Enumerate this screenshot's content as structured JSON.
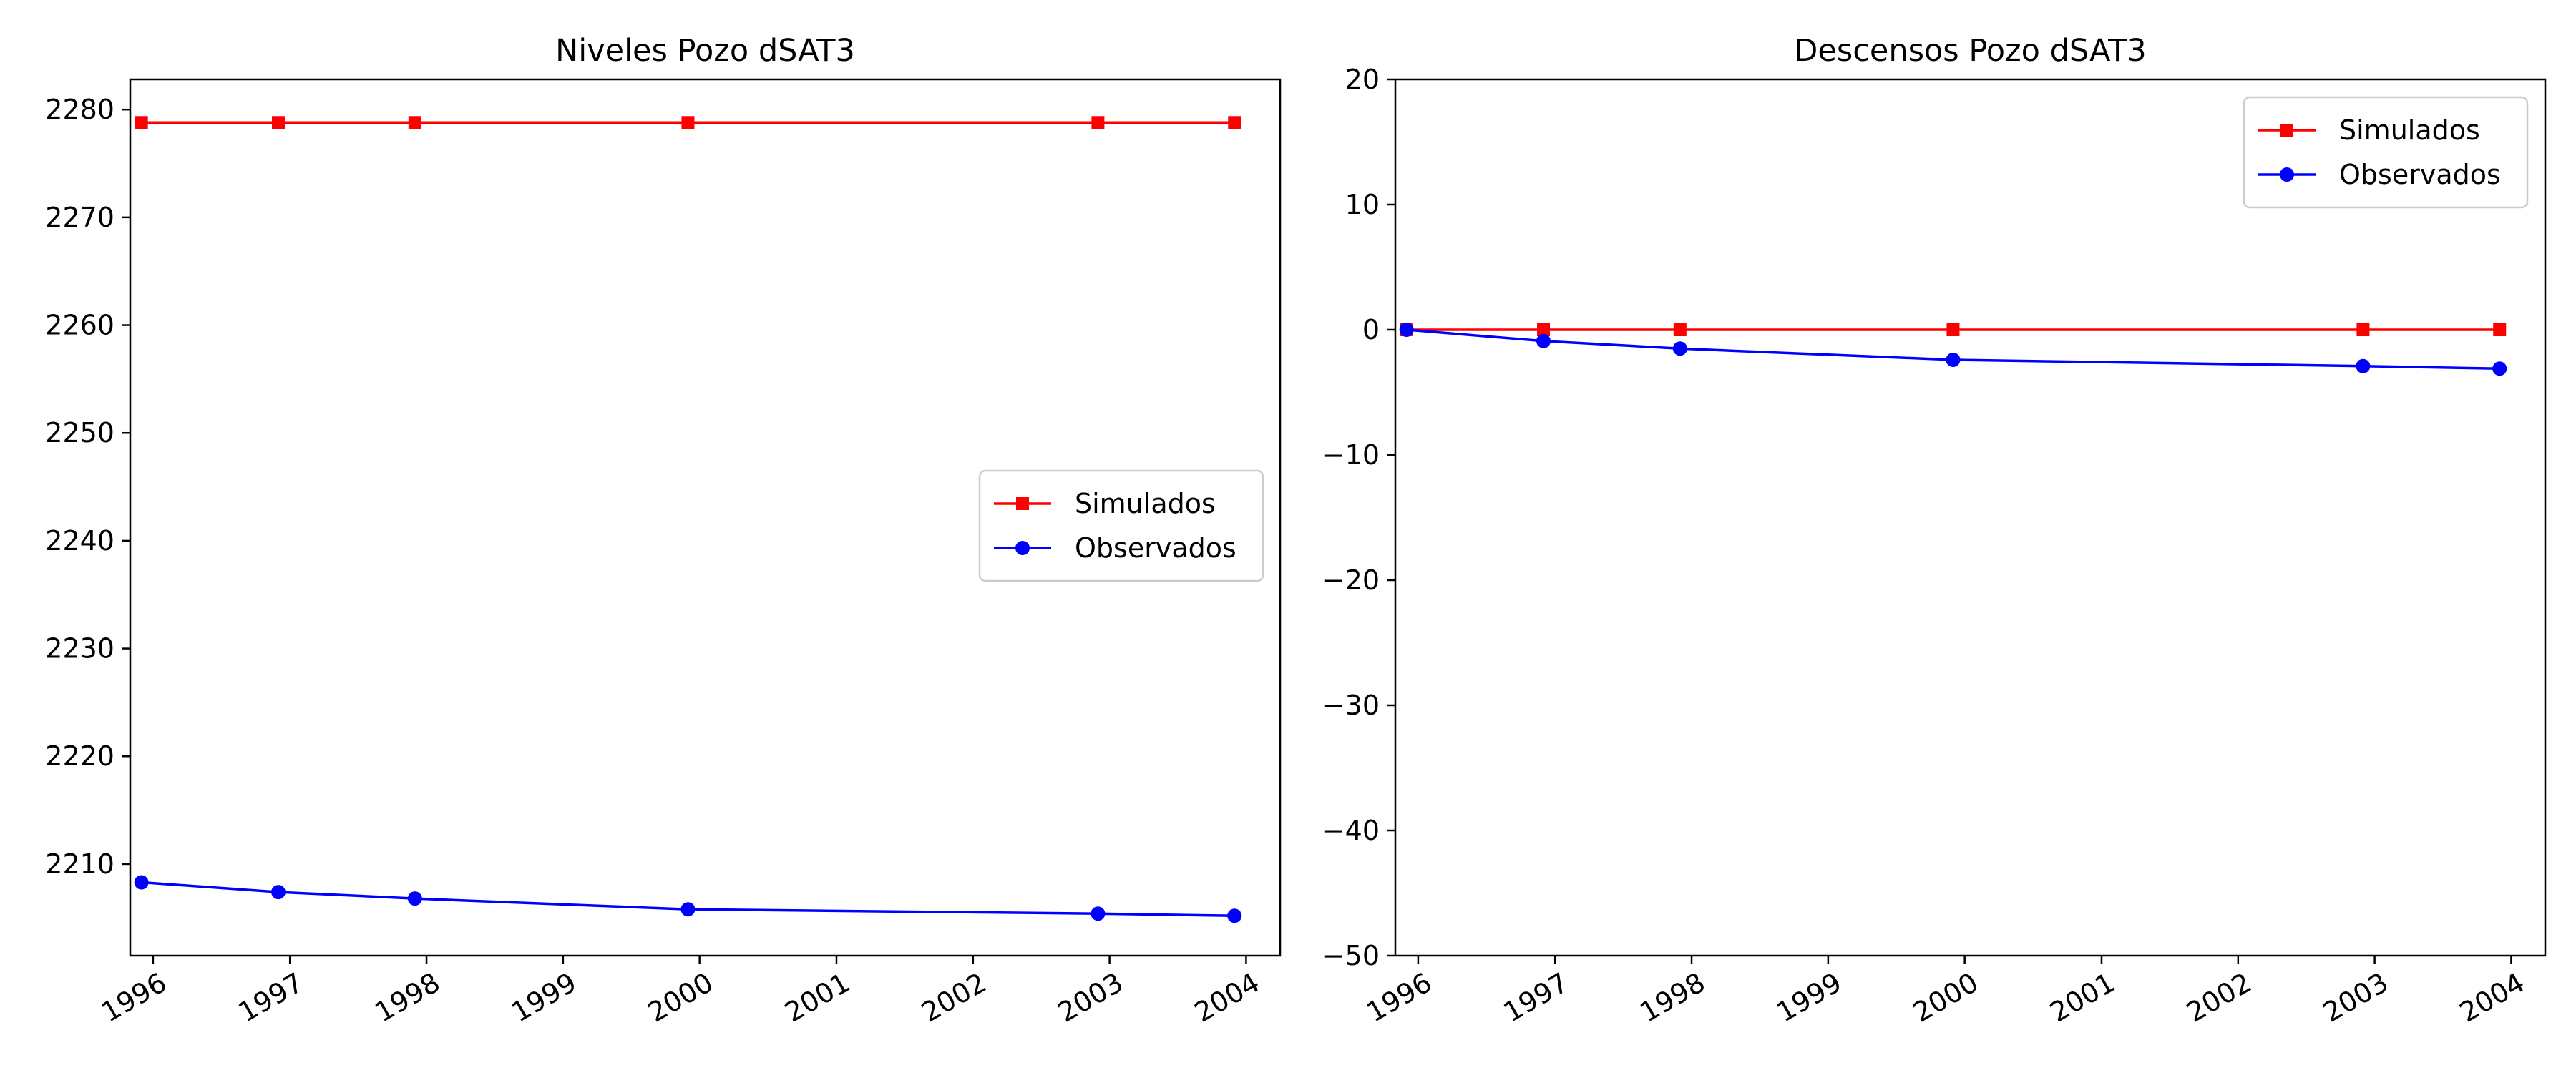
{
  "chart_data": [
    {
      "type": "line",
      "title": "Niveles Pozo dSAT3",
      "xlabel": "",
      "ylabel": "",
      "xlim": [
        "1995-11-01",
        "2004-04-01"
      ],
      "ylim": [
        2201.5,
        2282.8
      ],
      "x_ticks": [
        "1996",
        "1997",
        "1998",
        "1999",
        "2000",
        "2001",
        "2002",
        "2003",
        "2004"
      ],
      "y_ticks": [
        2210,
        2220,
        2230,
        2240,
        2250,
        2260,
        2270,
        2280
      ],
      "grid": false,
      "legend_position": "center-right",
      "series": [
        {
          "name": "Simulados",
          "color": "#ff0000",
          "marker": "square",
          "points": [
            {
              "x": "1995-12-01",
              "y": 2278.8
            },
            {
              "x": "1996-12-01",
              "y": 2278.8
            },
            {
              "x": "1997-12-01",
              "y": 2278.8
            },
            {
              "x": "1999-12-01",
              "y": 2278.8
            },
            {
              "x": "2002-12-01",
              "y": 2278.8
            },
            {
              "x": "2003-12-01",
              "y": 2278.8
            }
          ]
        },
        {
          "name": "Observados",
          "color": "#0000ff",
          "marker": "circle",
          "points": [
            {
              "x": "1995-12-01",
              "y": 2208.3
            },
            {
              "x": "1996-12-01",
              "y": 2207.4
            },
            {
              "x": "1997-12-01",
              "y": 2206.8
            },
            {
              "x": "1999-12-01",
              "y": 2205.8
            },
            {
              "x": "2002-12-01",
              "y": 2205.4
            },
            {
              "x": "2003-12-01",
              "y": 2205.2
            }
          ]
        }
      ]
    },
    {
      "type": "line",
      "title": "Descensos Pozo dSAT3",
      "xlabel": "",
      "ylabel": "",
      "xlim": [
        "1995-11-01",
        "2004-04-01"
      ],
      "ylim": [
        -50,
        20
      ],
      "x_ticks": [
        "1996",
        "1997",
        "1998",
        "1999",
        "2000",
        "2001",
        "2002",
        "2003",
        "2004"
      ],
      "y_ticks": [
        -50,
        -40,
        -30,
        -20,
        -10,
        0,
        10,
        20
      ],
      "grid": false,
      "legend_position": "top-right",
      "series": [
        {
          "name": "Simulados",
          "color": "#ff0000",
          "marker": "square",
          "points": [
            {
              "x": "1995-12-01",
              "y": 0
            },
            {
              "x": "1996-12-01",
              "y": 0
            },
            {
              "x": "1997-12-01",
              "y": 0
            },
            {
              "x": "1999-12-01",
              "y": 0
            },
            {
              "x": "2002-12-01",
              "y": 0
            },
            {
              "x": "2003-12-01",
              "y": 0
            }
          ]
        },
        {
          "name": "Observados",
          "color": "#0000ff",
          "marker": "circle",
          "points": [
            {
              "x": "1995-12-01",
              "y": 0
            },
            {
              "x": "1996-12-01",
              "y": -0.9
            },
            {
              "x": "1997-12-01",
              "y": -1.5
            },
            {
              "x": "1999-12-01",
              "y": -2.4
            },
            {
              "x": "2002-12-01",
              "y": -2.9
            },
            {
              "x": "2003-12-01",
              "y": -3.1
            }
          ]
        }
      ]
    }
  ]
}
